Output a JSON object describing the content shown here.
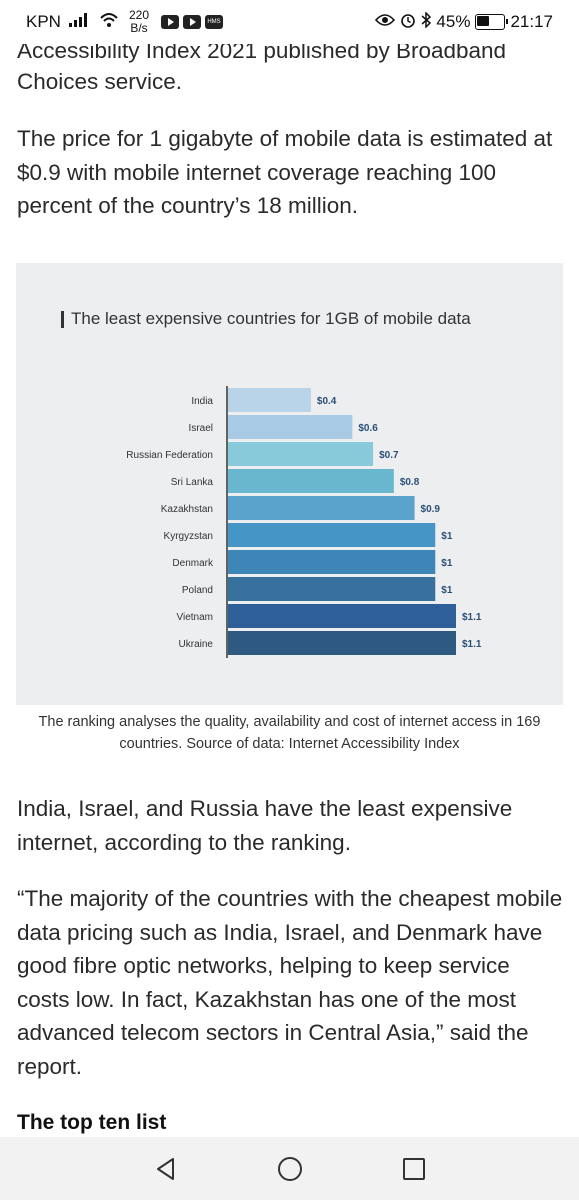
{
  "status_bar": {
    "carrier": "KPN",
    "speed_value": "220",
    "speed_unit": "B/s",
    "battery": "45%",
    "time": "21:17",
    "apps": [
      "youtube-icon",
      "youtube-icon",
      "hms-icon"
    ],
    "hms_label": "HMS"
  },
  "article": {
    "partial_top_line": "Accessibility Index 2021 published by Broadband",
    "line2": "Choices service.",
    "para_price": "The price for 1 gigabyte of mobile data is estimated at $0.9 with mobile internet coverage reaching 100 percent of the country’s 18 million.",
    "caption": "The ranking analyses the quality, availability and cost of internet access in 169 countries. Source of data: Internet Accessibility Index",
    "para_india": "India, Israel, and Russia have the least expensive internet, according to the ranking.",
    "para_quote": "“The majority of the countries with the cheapest mobile data pricing such as India, Israel, and Denmark have good fibre optic networks, helping to keep service costs low. In fact, Kazakhstan has one of the most advanced telecom sectors in Central Asia,” said the report.",
    "subheading": "The top ten list"
  },
  "chart_data": {
    "type": "bar",
    "orientation": "horizontal",
    "title": "The least expensive countries for 1GB of mobile data",
    "categories": [
      "India",
      "Israel",
      "Russian Federation",
      "Sri Lanka",
      "Kazakhstan",
      "Kyrgyzstan",
      "Denmark",
      "Poland",
      "Vietnam",
      "Ukraine"
    ],
    "values": [
      0.4,
      0.6,
      0.7,
      0.8,
      0.9,
      1,
      1,
      1,
      1.1,
      1.1
    ],
    "value_labels": [
      "$0.4",
      "$0.6",
      "$0.7",
      "$0.8",
      "$0.9",
      "$1",
      "$1",
      "$1",
      "$1.1",
      "$1.1"
    ],
    "colors": [
      "#b9d3e8",
      "#a8cae4",
      "#88c9da",
      "#69b7cf",
      "#5aa3cc",
      "#4595c6",
      "#3e85b8",
      "#37729f",
      "#2f5f99",
      "#2e5a82"
    ],
    "xlim": [
      0,
      1.1
    ],
    "grid": false,
    "legend": "none"
  },
  "nav": {
    "buttons": [
      "back",
      "home",
      "recents"
    ]
  }
}
